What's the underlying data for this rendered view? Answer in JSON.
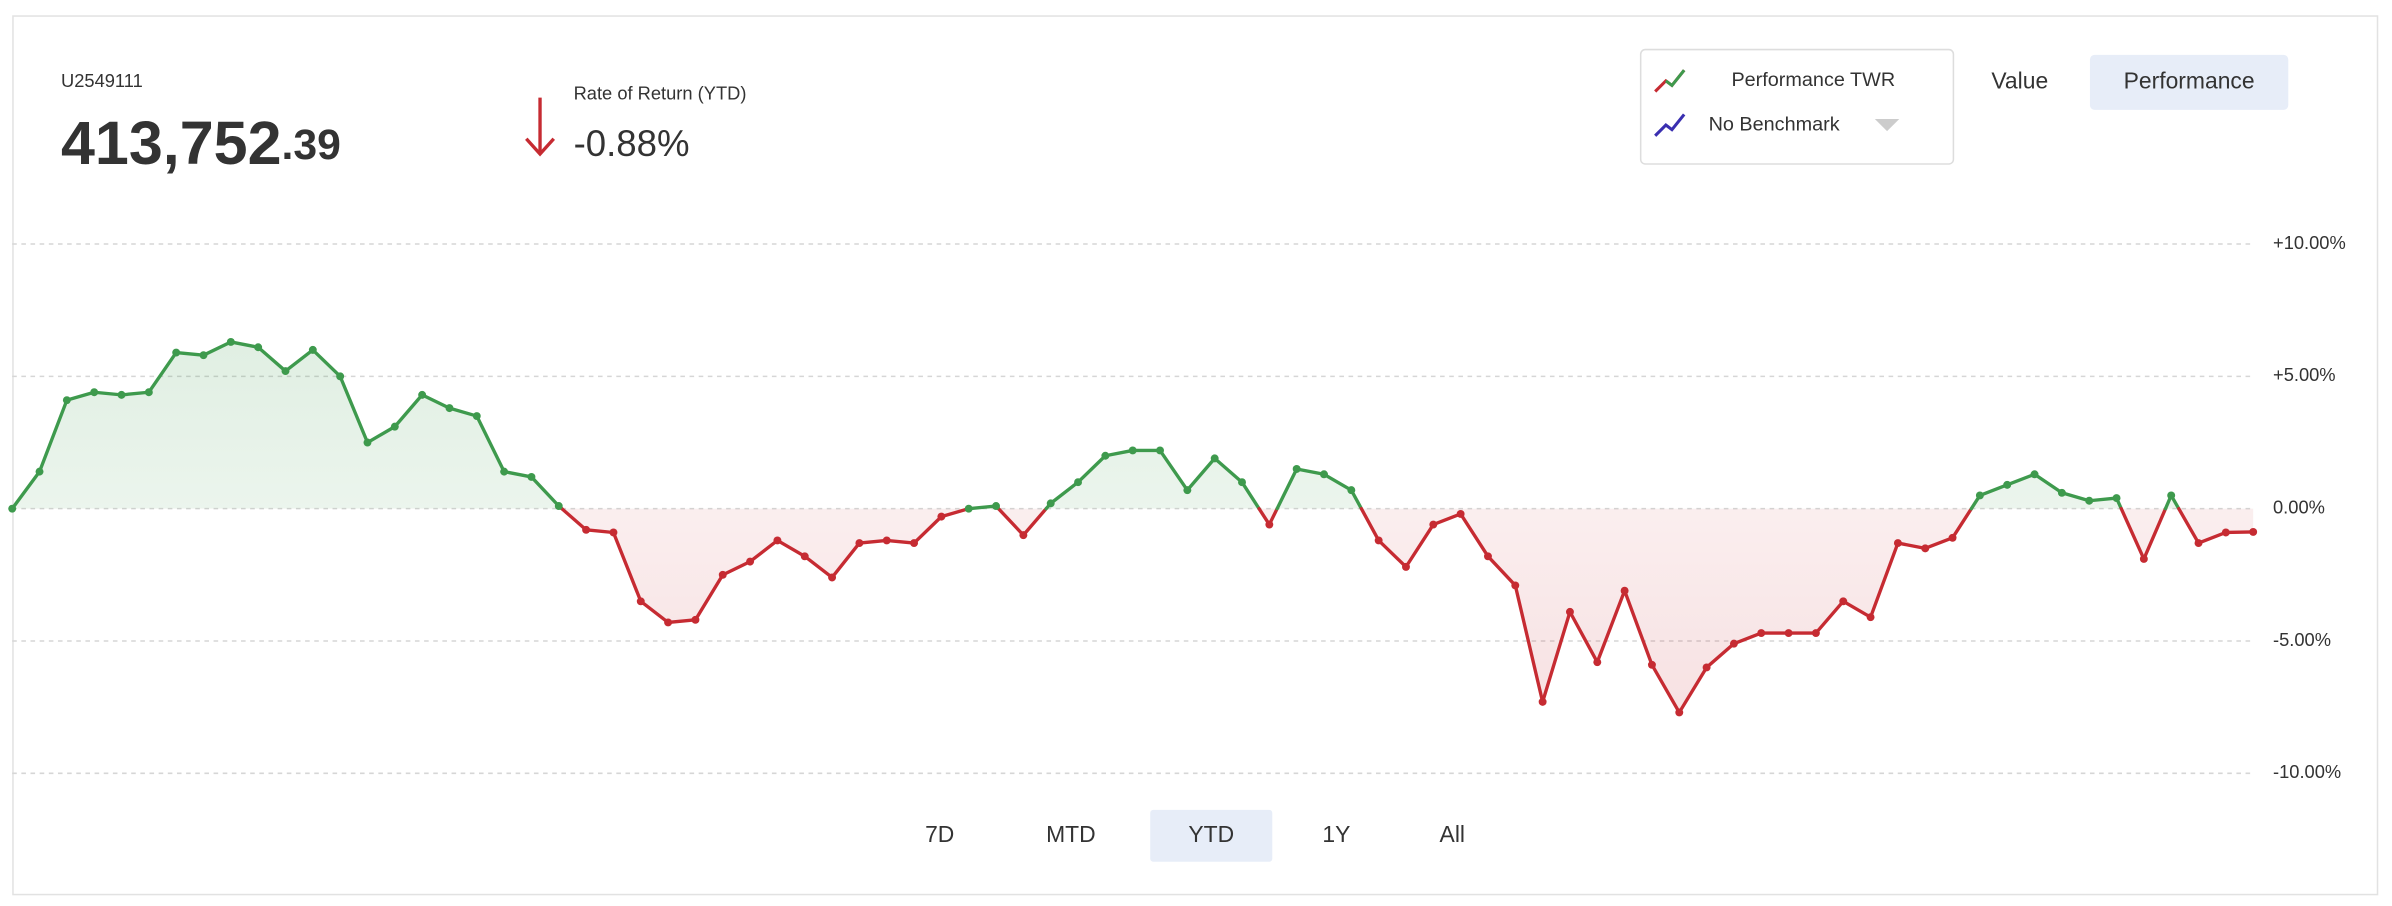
{
  "account": {
    "id": "U2549111",
    "value_integer": "413,752",
    "value_decimal": ".39",
    "return_label": "Rate of Return (YTD)",
    "return_value": "-0.88%"
  },
  "legend": {
    "performance": "Performance TWR",
    "benchmark": "No Benchmark"
  },
  "toggles": [
    "Value",
    "Performance"
  ],
  "ranges": [
    "7D",
    "MTD",
    "YTD",
    "1Y",
    "All"
  ],
  "chart_data": {
    "type": "line",
    "categories": [
      null,
      null,
      null,
      null,
      null,
      null,
      null,
      null,
      null,
      null,
      null,
      null,
      null,
      null,
      null,
      null,
      null,
      null,
      null,
      null,
      null,
      null,
      null,
      null,
      null,
      null,
      null,
      null,
      null,
      null,
      null,
      null,
      null,
      null,
      null,
      null,
      null,
      null,
      null,
      null,
      null,
      null,
      null,
      null,
      null,
      null,
      null,
      null,
      null,
      null,
      null,
      null,
      null,
      null,
      null,
      null,
      null,
      null,
      null,
      null,
      null,
      null,
      null,
      null,
      null,
      null,
      null,
      null,
      null,
      null,
      null,
      null,
      null,
      null,
      null,
      null,
      null,
      null,
      null,
      null,
      null,
      null,
      null
    ],
    "values": [
      0,
      1.4,
      4.1,
      4.4,
      4.3,
      4.4,
      5.9,
      5.8,
      6.3,
      6.1,
      5.2,
      6.0,
      5.0,
      2.5,
      3.1,
      4.3,
      3.8,
      3.5,
      1.4,
      1.2,
      0.1,
      -0.8,
      -0.9,
      -3.5,
      -4.3,
      -4.2,
      -2.5,
      -2.0,
      -1.2,
      -1.8,
      -2.6,
      -1.3,
      -1.2,
      -1.3,
      -0.3,
      0.0,
      0.1,
      -1.0,
      0.2,
      1.0,
      2.0,
      2.2,
      2.2,
      0.7,
      1.9,
      1.0,
      -0.6,
      1.5,
      1.3,
      0.7,
      -1.2,
      -2.2,
      -0.6,
      -0.2,
      -1.8,
      -2.9,
      -7.3,
      -3.9,
      -5.8,
      -3.1,
      -5.9,
      -7.7,
      -6.0,
      -5.1,
      -4.7,
      -4.7,
      -4.7,
      -3.5,
      -4.1,
      -1.3,
      -1.5,
      -1.1,
      0.5,
      0.9,
      1.3,
      0.6,
      0.3,
      0.4,
      -1.9,
      0.5,
      -1.3,
      -0.9,
      -0.88
    ],
    "positive_color": "#3e9a4d",
    "negative_color": "#c62b32",
    "ylim": [
      -10,
      10
    ],
    "yticks": [
      {
        "value": -10,
        "label": "-10.00%"
      },
      {
        "value": -5,
        "label": "-5.00%"
      },
      {
        "value": 0,
        "label": "0.00%"
      },
      {
        "value": 5,
        "label": "+5.00%"
      },
      {
        "value": 10,
        "label": "+10.00%"
      }
    ],
    "grid": true
  }
}
